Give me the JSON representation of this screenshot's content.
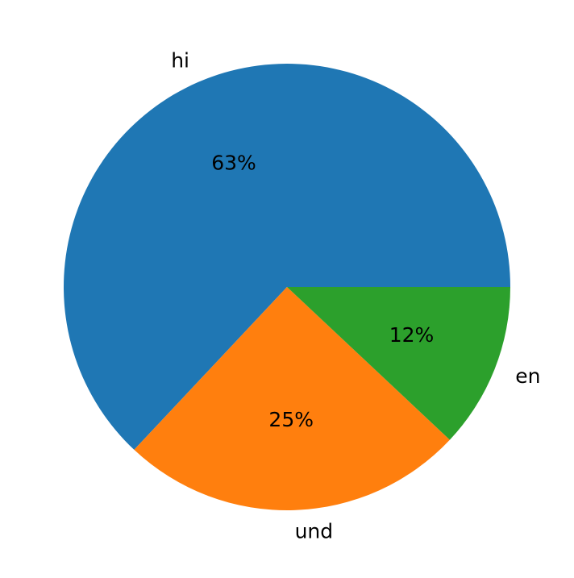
{
  "chart_data": {
    "type": "pie",
    "categories": [
      "hi",
      "und",
      "en"
    ],
    "values": [
      63,
      25,
      12
    ],
    "value_labels": [
      "63%",
      "25%",
      "12%"
    ],
    "colors": [
      "#1f77b4",
      "#ff7f0e",
      "#2ca02c"
    ]
  }
}
